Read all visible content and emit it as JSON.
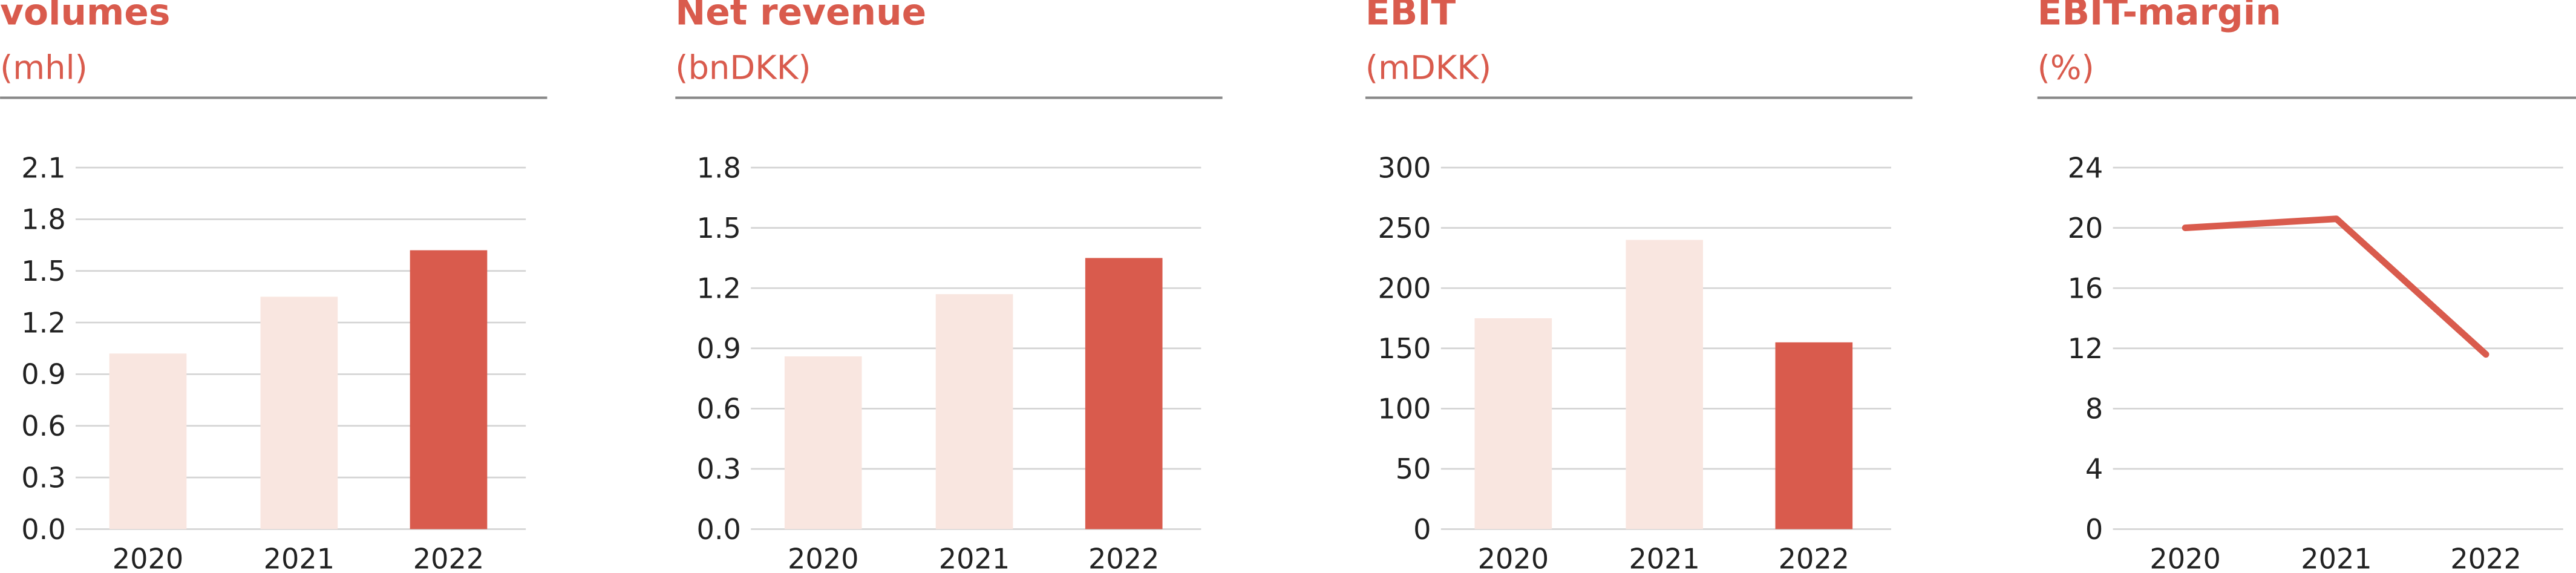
{
  "chart_data": [
    {
      "type": "bar",
      "title": "volumes",
      "subtitle": "(mhl)",
      "categories": [
        "2020",
        "2021",
        "2022"
      ],
      "values": [
        1.02,
        1.35,
        1.62
      ],
      "colors": [
        "#f9e6e0",
        "#f9e6e0",
        "#d95b4d"
      ],
      "ylim": [
        0,
        2.1
      ],
      "yticks": [
        {
          "value": 0,
          "label": "0.0"
        },
        0.3,
        0.6,
        0.9,
        1.2,
        1.5,
        1.8,
        2.1
      ],
      "grid": true
    },
    {
      "type": "bar",
      "title": "Net revenue",
      "subtitle": "(bnDKK)",
      "categories": [
        "2020",
        "2021",
        "2022"
      ],
      "values": [
        0.86,
        1.17,
        1.35
      ],
      "colors": [
        "#f9e6e0",
        "#f9e6e0",
        "#d95b4d"
      ],
      "ylim": [
        0,
        1.8
      ],
      "yticks": [
        {
          "value": 0,
          "label": "0.0"
        },
        0.3,
        0.6,
        0.9,
        1.2,
        1.5,
        1.8
      ],
      "grid": true
    },
    {
      "type": "bar",
      "title": "EBIT",
      "subtitle": "(mDKK)",
      "categories": [
        "2020",
        "2021",
        "2022"
      ],
      "values": [
        175,
        240,
        155
      ],
      "colors": [
        "#f9e6e0",
        "#f9e6e0",
        "#d95b4d"
      ],
      "ylim": [
        0,
        300
      ],
      "yticks": [
        0,
        50,
        100,
        150,
        200,
        250,
        300
      ],
      "grid": true
    },
    {
      "type": "line",
      "title": "EBIT-margin",
      "subtitle": "(%)",
      "categories": [
        "2020",
        "2021",
        "2022"
      ],
      "values": [
        20.0,
        20.6,
        11.6
      ],
      "color": "#d95b4d",
      "ylim": [
        0,
        24
      ],
      "yticks": [
        0,
        4,
        8,
        12,
        16,
        20,
        24
      ],
      "grid": true
    }
  ]
}
